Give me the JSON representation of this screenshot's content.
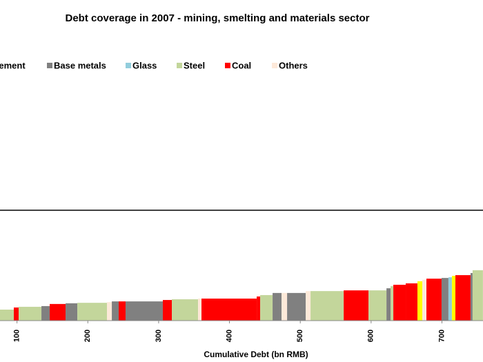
{
  "chart_data": {
    "type": "cumulative-bar",
    "title": "Debt coverage in 2007 - mining, smelting and materials sector",
    "x_label": "Cumulative Debt (bn RMB)",
    "series": [
      {
        "name": "Cement",
        "color": "#ffff00"
      },
      {
        "name": "Base metals",
        "color": "#808080"
      },
      {
        "name": "Glass",
        "color": "#92cddc"
      },
      {
        "name": "Steel",
        "color": "#c3d69b"
      },
      {
        "name": "Coal",
        "color": "#ff0000"
      },
      {
        "name": "Others",
        "color": "#fde9d9"
      }
    ],
    "bars": [
      {
        "sector": "Steel",
        "debt": 95.5,
        "coverage": 0.47
      },
      {
        "sector": "Coal",
        "debt": 6.8,
        "coverage": 0.56
      },
      {
        "sector": "Steel",
        "debt": 32.2,
        "coverage": 0.59
      },
      {
        "sector": "Base metals",
        "debt": 11.7,
        "coverage": 0.62
      },
      {
        "sector": "Coal",
        "debt": 22.4,
        "coverage": 0.71
      },
      {
        "sector": "Base metals",
        "debt": 16.6,
        "coverage": 0.74
      },
      {
        "sector": "Steel",
        "debt": 41.9,
        "coverage": 0.76
      },
      {
        "sector": "Others",
        "debt": 6.8,
        "coverage": 0.79
      },
      {
        "sector": "Base metals",
        "debt": 9.7,
        "coverage": 0.82
      },
      {
        "sector": "Coal",
        "debt": 9.7,
        "coverage": 0.82
      },
      {
        "sector": "Base metals",
        "debt": 52.6,
        "coverage": 0.82
      },
      {
        "sector": "Coal",
        "debt": 12.7,
        "coverage": 0.88
      },
      {
        "sector": "Steel",
        "debt": 37.0,
        "coverage": 0.91
      },
      {
        "sector": "Others",
        "debt": 4.9,
        "coverage": 0.94
      },
      {
        "sector": "Coal",
        "debt": 78.0,
        "coverage": 0.94
      },
      {
        "sector": "Coal",
        "debt": 4.9,
        "coverage": 1.03
      },
      {
        "sector": "Steel",
        "debt": 17.5,
        "coverage": 1.09
      },
      {
        "sector": "Base metals",
        "debt": 12.7,
        "coverage": 1.18
      },
      {
        "sector": "Others",
        "debt": 7.8,
        "coverage": 1.18
      },
      {
        "sector": "Base metals",
        "debt": 26.3,
        "coverage": 1.18
      },
      {
        "sector": "Others",
        "debt": 6.8,
        "coverage": 1.26
      },
      {
        "sector": "Steel",
        "debt": 46.8,
        "coverage": 1.26
      },
      {
        "sector": "Coal",
        "debt": 35.1,
        "coverage": 1.29
      },
      {
        "sector": "Steel",
        "debt": 25.3,
        "coverage": 1.29
      },
      {
        "sector": "Base metals",
        "debt": 5.8,
        "coverage": 1.38
      },
      {
        "sector": "Steel",
        "debt": 3.9,
        "coverage": 1.47
      },
      {
        "sector": "Coal",
        "debt": 17.5,
        "coverage": 1.53
      },
      {
        "sector": "Coal",
        "debt": 16.6,
        "coverage": 1.59
      },
      {
        "sector": "Cement",
        "debt": 6.8,
        "coverage": 1.68
      },
      {
        "sector": "Others",
        "debt": 5.8,
        "coverage": 1.74
      },
      {
        "sector": "Coal",
        "debt": 21.4,
        "coverage": 1.79
      },
      {
        "sector": "Base metals",
        "debt": 9.7,
        "coverage": 1.82
      },
      {
        "sector": "Glass",
        "debt": 4.9,
        "coverage": 1.85
      },
      {
        "sector": "Cement",
        "debt": 4.9,
        "coverage": 1.91
      },
      {
        "sector": "Coal",
        "debt": 21.4,
        "coverage": 1.94
      },
      {
        "sector": "Base metals",
        "debt": 2.9,
        "coverage": 2.03
      },
      {
        "sector": "Steel",
        "debt": 14.6,
        "coverage": 2.15
      }
    ],
    "reference_line": 4.71,
    "xlim": [
      76,
      758
    ],
    "xticks": [
      100,
      200,
      300,
      400,
      500,
      600,
      700
    ],
    "ylim": [
      0,
      10
    ]
  }
}
